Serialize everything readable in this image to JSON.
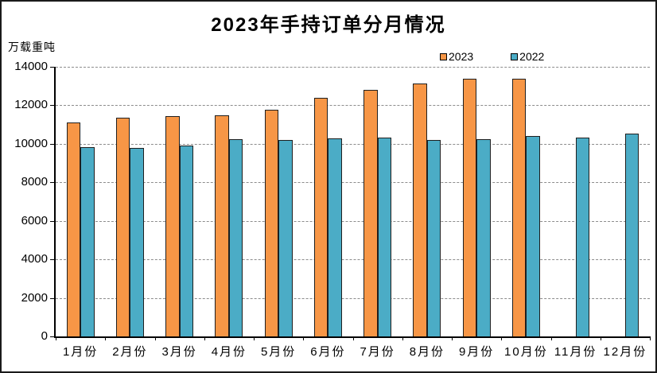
{
  "chart_data": {
    "type": "bar",
    "title": "2023年手持订单分月情况",
    "y_unit_label": "万载重吨",
    "categories": [
      "1月份",
      "2月份",
      "3月份",
      "4月份",
      "5月份",
      "6月份",
      "7月份",
      "8月份",
      "9月份",
      "10月份",
      "11月份",
      "12月份"
    ],
    "series": [
      {
        "name": "2023",
        "color": "#F79646",
        "values": [
          11100,
          11350,
          11450,
          11500,
          11760,
          12380,
          12790,
          13150,
          13390,
          13390,
          null,
          null
        ]
      },
      {
        "name": "2022",
        "color": "#4BACC6",
        "values": [
          9810,
          9780,
          9910,
          10240,
          10200,
          10270,
          10340,
          10210,
          10260,
          10420,
          10340,
          10550
        ]
      }
    ],
    "xlabel": "",
    "ylabel": "万载重吨",
    "ylim": [
      0,
      14000
    ],
    "yticks": [
      0,
      2000,
      4000,
      6000,
      8000,
      10000,
      12000,
      14000
    ],
    "grid": "horizontal-dashed",
    "gridline_color": "#8c8c8c",
    "legend_position": "top-right",
    "bar_border_color": "#1f1f1f"
  }
}
